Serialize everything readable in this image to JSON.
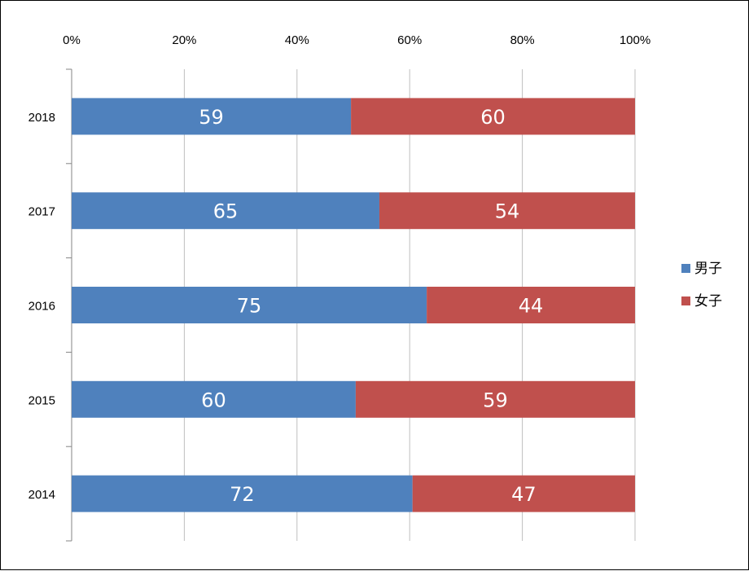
{
  "chart_data": {
    "type": "bar",
    "orientation": "horizontal",
    "stacking": "percent",
    "categories": [
      "2018",
      "2017",
      "2016",
      "2015",
      "2014"
    ],
    "series": [
      {
        "name": "男子",
        "color": "#4F81BD",
        "values": [
          59,
          65,
          75,
          60,
          72
        ]
      },
      {
        "name": "女子",
        "color": "#C0504D",
        "values": [
          60,
          54,
          44,
          59,
          47
        ]
      }
    ],
    "x_ticks": [
      "0%",
      "20%",
      "40%",
      "60%",
      "80%",
      "100%"
    ],
    "xlim": [
      0,
      100
    ],
    "x_axis_position": "top",
    "grid": true,
    "legend_position": "right",
    "data_labels": true
  }
}
